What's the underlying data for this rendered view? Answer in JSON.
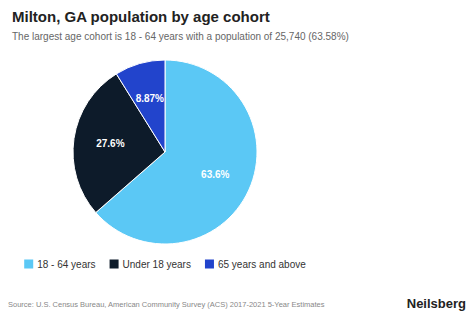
{
  "chart_data": {
    "type": "pie",
    "title": "Milton, GA population by age cohort",
    "subtitle": "The largest age cohort is 18 - 64 years with a population of 25,740 (63.58%)",
    "categories": [
      "18 - 64 years",
      "Under 18 years",
      "65 years and above"
    ],
    "values": [
      63.6,
      27.6,
      8.87
    ],
    "value_labels": [
      "63.6%",
      "27.6%",
      "8.87%"
    ],
    "colors": [
      "#5BC8F5",
      "#0D1B2A",
      "#2244CC"
    ],
    "data_labels": true,
    "legend": "bottom",
    "annotations": [
      "Source: U.S. Census Bureau, American Community Survey (ACS) 2017-2021 5-Year Estimates",
      "Neilsberg"
    ]
  }
}
